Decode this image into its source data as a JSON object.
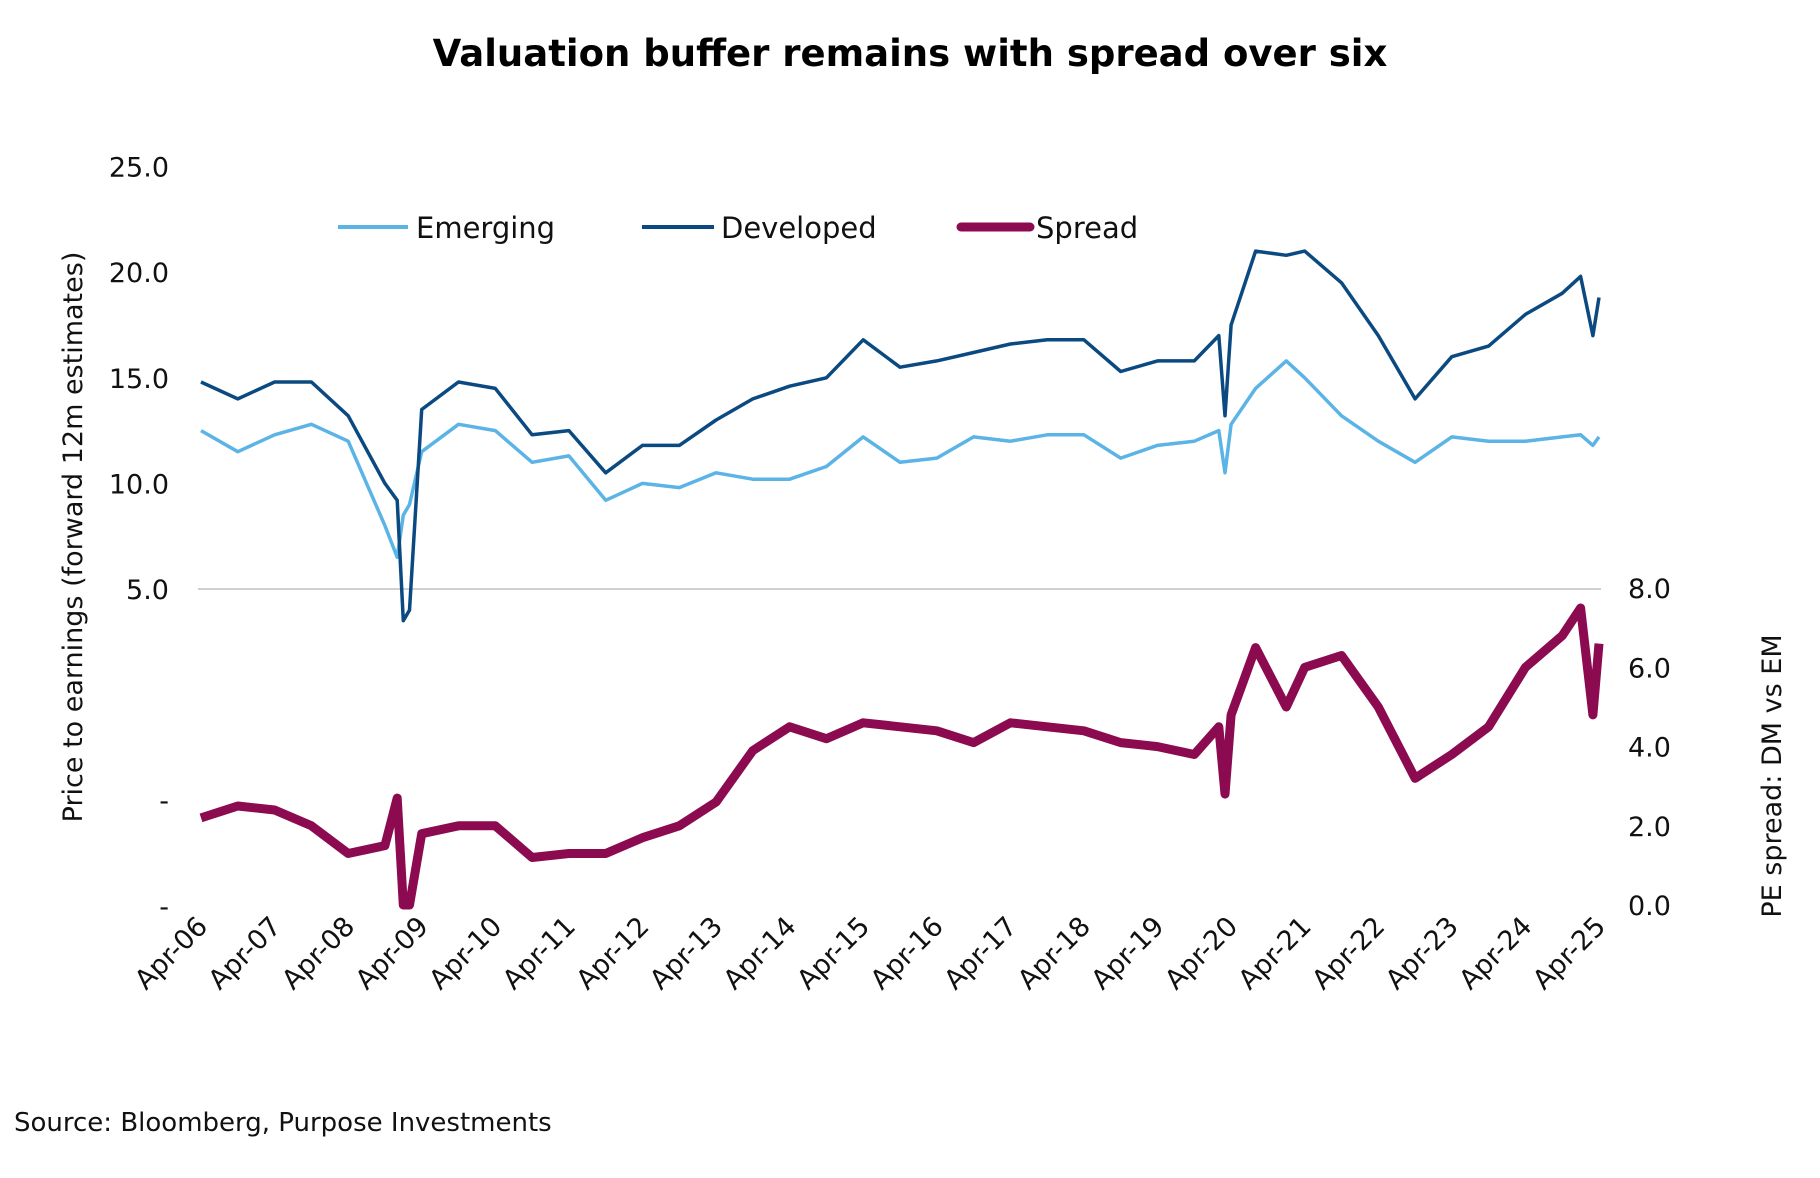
{
  "chart_data": {
    "type": "line",
    "title": "Valuation buffer remains with spread over six",
    "ylabel": "Price to earnings (forward 12m estimates)",
    "y2label": "PE spread: DM vs EM",
    "source": "Source: Bloomberg, Purpose Investments",
    "x_tick_labels": [
      "Apr-06",
      "Apr-07",
      "Apr-08",
      "Apr-09",
      "Apr-10",
      "Apr-11",
      "Apr-12",
      "Apr-13",
      "Apr-14",
      "Apr-15",
      "Apr-16",
      "Apr-17",
      "Apr-18",
      "Apr-19",
      "Apr-20",
      "Apr-21",
      "Apr-22",
      "Apr-23",
      "Apr-24",
      "Apr-25"
    ],
    "y_tick_labels": [
      "25.0",
      "20.0",
      "15.0",
      "10.0",
      "5.0",
      "",
      "-",
      "-"
    ],
    "y_ticks": [
      25,
      20,
      15,
      10,
      5,
      0,
      -5,
      -10
    ],
    "ylim": [
      -10,
      25
    ],
    "y2_tick_labels": [
      "8.0",
      "6.0",
      "4.0",
      "2.0",
      "0.0"
    ],
    "y2_ticks": [
      8,
      6,
      4,
      2,
      0
    ],
    "y2lim": [
      0,
      8
    ],
    "gridline_at": 5,
    "legend": "top",
    "x": [
      "2006-04",
      "2006-10",
      "2007-04",
      "2007-10",
      "2008-04",
      "2008-10",
      "2008-12",
      "2009-01",
      "2009-02",
      "2009-04",
      "2009-10",
      "2010-04",
      "2010-10",
      "2011-04",
      "2011-10",
      "2012-04",
      "2012-10",
      "2013-04",
      "2013-10",
      "2014-04",
      "2014-10",
      "2015-04",
      "2015-10",
      "2016-04",
      "2016-10",
      "2017-04",
      "2017-10",
      "2018-04",
      "2018-10",
      "2019-04",
      "2019-10",
      "2020-02",
      "2020-03",
      "2020-04",
      "2020-08",
      "2021-01",
      "2021-04",
      "2021-10",
      "2022-04",
      "2022-10",
      "2023-04",
      "2023-10",
      "2024-04",
      "2024-10",
      "2025-01",
      "2025-03",
      "2025-04"
    ],
    "series": [
      {
        "name": "Emerging",
        "axis": "left",
        "color": "#5BB4E5",
        "values": [
          12.5,
          11.5,
          12.3,
          12.8,
          12.0,
          8.0,
          6.5,
          8.5,
          9.0,
          11.5,
          12.8,
          12.5,
          11.0,
          11.3,
          9.2,
          10.0,
          9.8,
          10.5,
          10.2,
          10.2,
          10.8,
          12.2,
          11.0,
          11.2,
          12.2,
          12.0,
          12.3,
          12.3,
          11.2,
          11.8,
          12.0,
          12.5,
          10.5,
          12.8,
          14.5,
          15.8,
          15.0,
          13.2,
          12.0,
          11.0,
          12.2,
          12.0,
          12.0,
          12.2,
          12.3,
          11.8,
          12.2
        ]
      },
      {
        "name": "Developed",
        "axis": "left",
        "color": "#0B4A80",
        "values": [
          14.8,
          14.0,
          14.8,
          14.8,
          13.2,
          10.0,
          9.2,
          3.5,
          4.0,
          13.5,
          14.8,
          14.5,
          12.3,
          12.5,
          10.5,
          11.8,
          11.8,
          13.0,
          14.0,
          14.6,
          15.0,
          16.8,
          15.5,
          15.8,
          16.2,
          16.6,
          16.8,
          16.8,
          15.3,
          15.8,
          15.8,
          17.0,
          13.2,
          17.5,
          21.0,
          20.8,
          21.0,
          19.5,
          17.0,
          14.0,
          16.0,
          16.5,
          18.0,
          19.0,
          19.8,
          17.0,
          18.8
        ]
      },
      {
        "name": "Spread",
        "axis": "right",
        "color": "#8B0A50",
        "values": [
          2.2,
          2.5,
          2.4,
          2.0,
          1.3,
          1.5,
          2.7,
          0.0,
          0.0,
          1.8,
          2.0,
          2.0,
          1.2,
          1.3,
          1.3,
          1.7,
          2.0,
          2.6,
          3.9,
          4.5,
          4.2,
          4.6,
          4.5,
          4.4,
          4.1,
          4.6,
          4.5,
          4.4,
          4.1,
          4.0,
          3.8,
          4.5,
          2.8,
          4.8,
          6.5,
          5.0,
          6.0,
          6.3,
          5.0,
          3.2,
          3.8,
          4.5,
          6.0,
          6.8,
          7.5,
          4.8,
          6.6
        ]
      }
    ]
  }
}
